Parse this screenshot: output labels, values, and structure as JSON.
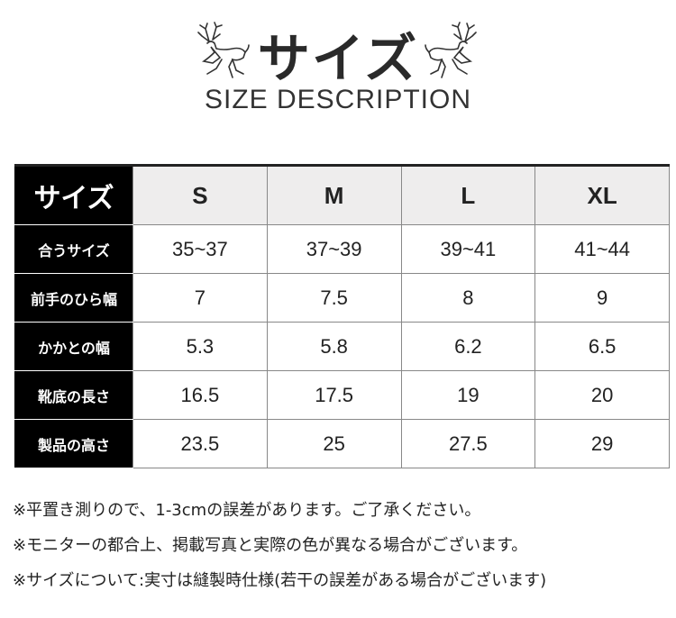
{
  "header": {
    "title": "サイズ",
    "subtitle": "SIZE DESCRIPTION",
    "icon": "deer-icon"
  },
  "table": {
    "corner": "サイズ",
    "columns": [
      "S",
      "M",
      "L",
      "XL"
    ],
    "rows": [
      {
        "label": "合うサイズ",
        "values": [
          "35~37",
          "37~39",
          "39~41",
          "41~44"
        ]
      },
      {
        "label": "前手のひら幅",
        "values": [
          "7",
          "7.5",
          "8",
          "9"
        ]
      },
      {
        "label": "かかとの幅",
        "values": [
          "5.3",
          "5.8",
          "6.2",
          "6.5"
        ]
      },
      {
        "label": "靴底の長さ",
        "values": [
          "16.5",
          "17.5",
          "19",
          "20"
        ]
      },
      {
        "label": "製品の高さ",
        "values": [
          "23.5",
          "25",
          "27.5",
          "29"
        ]
      }
    ]
  },
  "notes": [
    "※平置き測りので、1-3cmの誤差があります。ご了承ください。",
    "※モニターの都合上、掲載写真と実際の色が異なる場合がございます。",
    "※サイズについて:実寸は縫製時仕様(若干の誤差がある場合がございます)"
  ]
}
